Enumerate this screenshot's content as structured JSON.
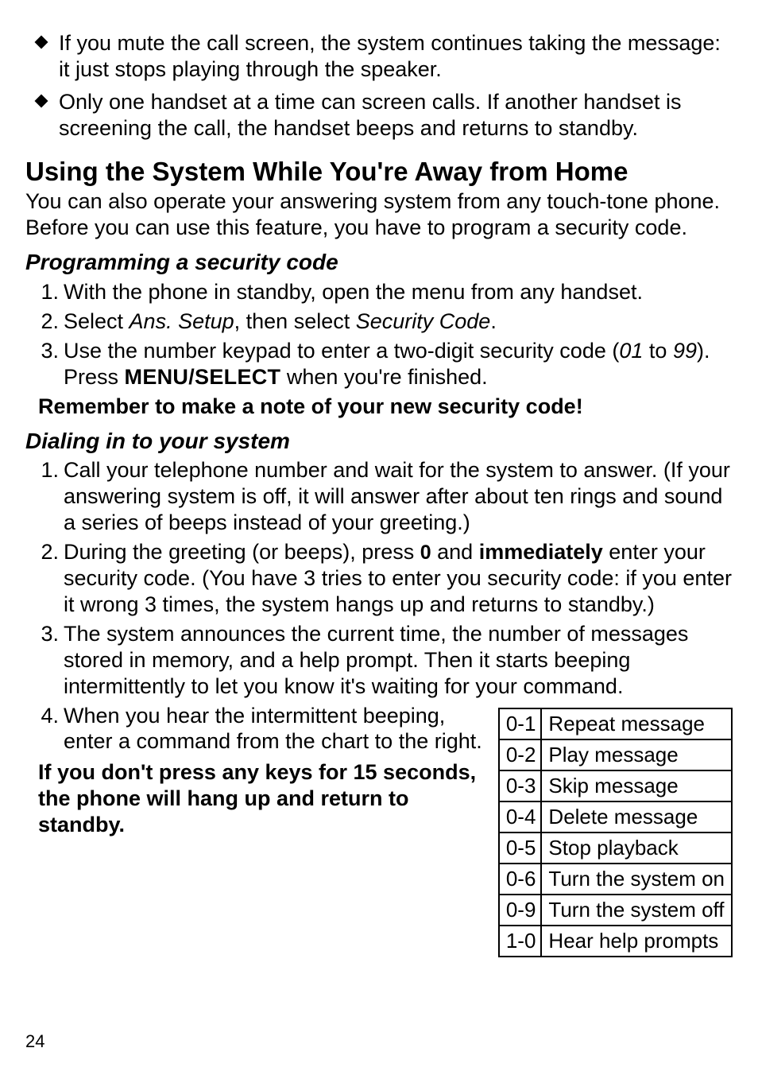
{
  "bullets": [
    "If you mute the call screen, the system continues taking the message: it just stops playing through the speaker.",
    "Only one handset at a time can screen calls. If another handset is screening the call, the handset beeps and returns to standby."
  ],
  "section_title": "Using the System While You're Away from Home",
  "section_intro": "You can also operate your answering system from any touch-tone phone. Before you can use this feature, you have to program a security code.",
  "programming": {
    "heading": "Programming a security code",
    "steps": {
      "s1": "With the phone in standby, open the menu from any handset.",
      "s2_pre": "Select ",
      "s2_i1": "Ans. Setup",
      "s2_mid": ", then select ",
      "s2_i2": "Security Code",
      "s2_post": ".",
      "s3_pre": "Use the number keypad to enter a two-digit security code (",
      "s3_i1": "01",
      "s3_mid": " to ",
      "s3_i2": "99",
      "s3_post1": "). Press ",
      "s3_sc": "MENU/SELECT",
      "s3_post2": " when you're finished."
    },
    "note": "Remember to make a note of your new security code!"
  },
  "dialing": {
    "heading": "Dialing in to your system",
    "steps": {
      "s1": "Call your telephone number and wait for the system to answer. (If your answering system is off, it will answer after about ten rings and sound a series of beeps instead of your greeting.)",
      "s2_pre": "During the greeting (or beeps), press ",
      "s2_key": "0",
      "s2_mid": " and ",
      "s2_bold": "immediately",
      "s2_post": " enter your security code. (You have 3 tries to enter you security code: if you enter it wrong 3 times, the system hangs up and returns to standby.)",
      "s3": "The system announces the current time, the number of messages stored in memory, and a help prompt. Then it starts beeping intermittently to let you know it's waiting for your command.",
      "s4": "When you hear the intermittent beeping, enter a command from the chart to the right."
    },
    "note": "If you don't press any keys for 15 seconds, the phone will hang up and return to standby."
  },
  "commands": [
    {
      "code": "0-1",
      "label": "Repeat message"
    },
    {
      "code": "0-2",
      "label": "Play message"
    },
    {
      "code": "0-3",
      "label": "Skip message"
    },
    {
      "code": "0-4",
      "label": "Delete message"
    },
    {
      "code": "0-5",
      "label": "Stop playback"
    },
    {
      "code": "0-6",
      "label": "Turn the system on"
    },
    {
      "code": "0-9",
      "label": "Turn the system off"
    },
    {
      "code": "1-0",
      "label": "Hear help prompts"
    }
  ],
  "page_number": "24"
}
